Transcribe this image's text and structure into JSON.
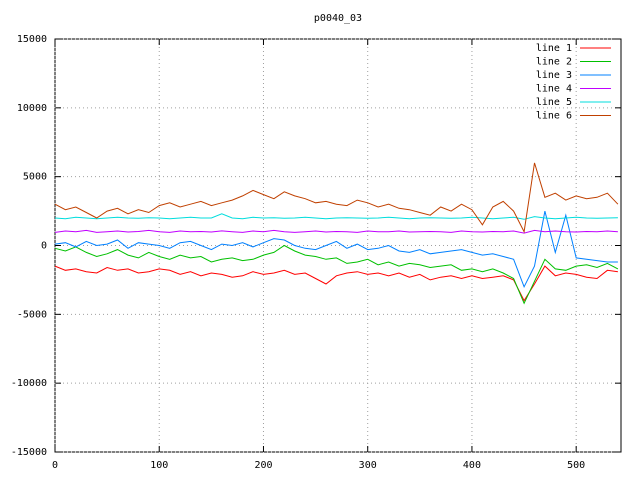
{
  "chart_data": {
    "type": "line",
    "title": "p0040_03",
    "x": [
      0,
      10,
      20,
      30,
      40,
      50,
      60,
      70,
      80,
      90,
      100,
      110,
      120,
      130,
      140,
      150,
      160,
      170,
      180,
      190,
      200,
      210,
      220,
      230,
      240,
      250,
      260,
      270,
      280,
      290,
      300,
      310,
      320,
      330,
      340,
      350,
      360,
      370,
      380,
      390,
      400,
      410,
      420,
      430,
      440,
      450,
      460,
      470,
      480,
      490,
      500,
      510,
      520,
      530,
      540
    ],
    "xlim": [
      0,
      543
    ],
    "xticks": [
      0,
      100,
      200,
      300,
      400,
      500
    ],
    "ylim": [
      -15000,
      15000
    ],
    "yticks": [
      -15000,
      -10000,
      -5000,
      0,
      5000,
      10000,
      15000
    ],
    "grid": true,
    "legend": "top-right",
    "series": [
      {
        "name": "line 1",
        "color": "#ff0000",
        "values": [
          -1500,
          -1800,
          -1700,
          -1900,
          -2000,
          -1600,
          -1800,
          -1700,
          -2000,
          -1900,
          -1700,
          -1800,
          -2100,
          -1900,
          -2200,
          -2000,
          -2100,
          -2300,
          -2200,
          -1900,
          -2100,
          -2000,
          -1800,
          -2100,
          -2000,
          -2400,
          -2800,
          -2200,
          -2000,
          -1900,
          -2100,
          -2000,
          -2200,
          -2000,
          -2300,
          -2100,
          -2500,
          -2300,
          -2200,
          -2400,
          -2200,
          -2400,
          -2300,
          -2200,
          -2500,
          -4000,
          -2800,
          -1500,
          -2200,
          -2000,
          -2100,
          -2300,
          -2400,
          -1800,
          -1900
        ]
      },
      {
        "name": "line 2",
        "color": "#00c000",
        "values": [
          -200,
          -400,
          -100,
          -500,
          -800,
          -600,
          -300,
          -700,
          -900,
          -500,
          -800,
          -1000,
          -700,
          -900,
          -800,
          -1200,
          -1000,
          -900,
          -1100,
          -1000,
          -700,
          -500,
          0,
          -400,
          -700,
          -800,
          -1000,
          -900,
          -1300,
          -1200,
          -1000,
          -1400,
          -1200,
          -1500,
          -1300,
          -1400,
          -1600,
          -1500,
          -1400,
          -1800,
          -1700,
          -1900,
          -1700,
          -2000,
          -2400,
          -4200,
          -2600,
          -1000,
          -1700,
          -1800,
          -1500,
          -1400,
          -1600,
          -1300,
          -1700
        ]
      },
      {
        "name": "line 3",
        "color": "#0080ff",
        "values": [
          100,
          200,
          -100,
          300,
          0,
          100,
          400,
          -200,
          200,
          100,
          0,
          -200,
          200,
          300,
          0,
          -300,
          100,
          0,
          200,
          -100,
          200,
          500,
          400,
          0,
          -200,
          -300,
          0,
          300,
          -200,
          100,
          -300,
          -200,
          0,
          -400,
          -500,
          -300,
          -600,
          -500,
          -400,
          -300,
          -500,
          -700,
          -600,
          -800,
          -1000,
          -3000,
          -1500,
          2500,
          -500,
          2200,
          -900,
          -1000,
          -1100,
          -1200,
          -1200
        ]
      },
      {
        "name": "line 4",
        "color": "#c000ff",
        "values": [
          950,
          1050,
          1000,
          1100,
          950,
          1000,
          1050,
          980,
          1020,
          1100,
          1000,
          950,
          1050,
          1000,
          1020,
          980,
          1060,
          1000,
          950,
          1050,
          1000,
          1100,
          1000,
          950,
          1000,
          1050,
          980,
          1020,
          1000,
          950,
          1050,
          1000,
          1000,
          1050,
          980,
          1000,
          1020,
          1000,
          950,
          1050,
          1000,
          980,
          1020,
          1000,
          1050,
          900,
          1100,
          1000,
          1050,
          1000,
          980,
          1020,
          1000,
          1050,
          1000
        ]
      },
      {
        "name": "line 5",
        "color": "#00dddd",
        "values": [
          2000,
          1950,
          2050,
          2000,
          1950,
          2000,
          2050,
          2000,
          1980,
          2020,
          2000,
          1950,
          2000,
          2050,
          2000,
          2000,
          2300,
          2000,
          1950,
          2050,
          2000,
          2020,
          1980,
          2000,
          2050,
          2000,
          1950,
          2000,
          2020,
          2000,
          1980,
          2000,
          2050,
          2000,
          1950,
          2000,
          2020,
          2000,
          1980,
          2000,
          2050,
          2000,
          1950,
          2000,
          2050,
          1900,
          2100,
          2000,
          1950,
          2000,
          2050,
          2000,
          1980,
          2000,
          2020
        ]
      },
      {
        "name": "line 6",
        "color": "#c04000",
        "values": [
          3000,
          2600,
          2800,
          2400,
          2000,
          2500,
          2700,
          2300,
          2600,
          2400,
          2900,
          3100,
          2800,
          3000,
          3200,
          2900,
          3100,
          3300,
          3600,
          4000,
          3700,
          3400,
          3900,
          3600,
          3400,
          3100,
          3200,
          3000,
          2900,
          3300,
          3100,
          2800,
          3000,
          2700,
          2600,
          2400,
          2200,
          2800,
          2500,
          3000,
          2600,
          1500,
          2800,
          3200,
          2500,
          1000,
          6000,
          3500,
          3800,
          3300,
          3600,
          3400,
          3500,
          3800,
          3000
        ]
      }
    ]
  }
}
